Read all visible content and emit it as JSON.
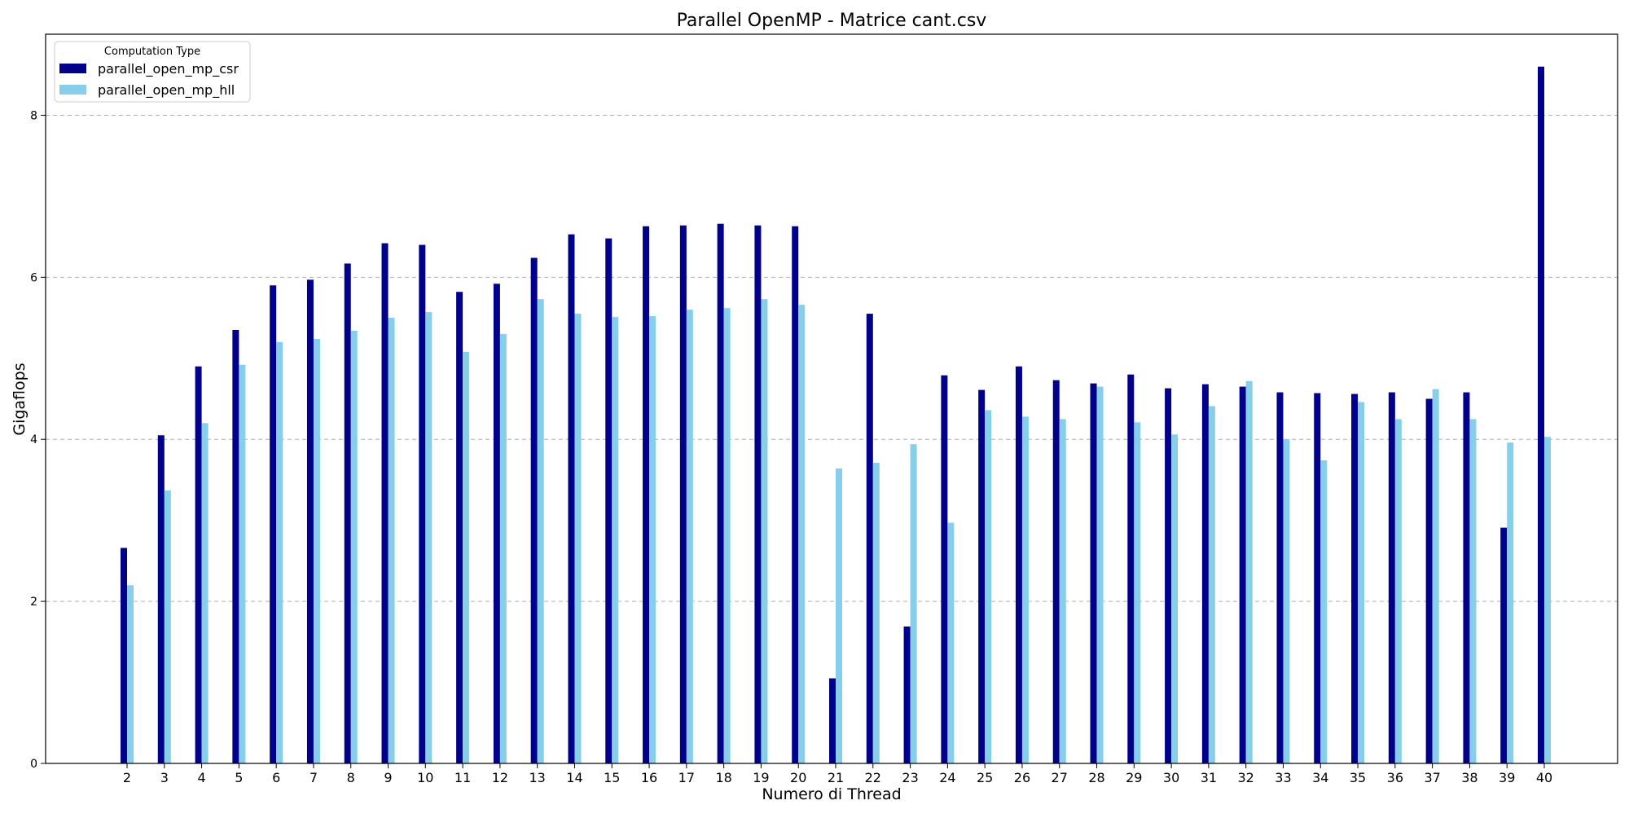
{
  "chart_data": {
    "type": "bar",
    "title": "Parallel OpenMP - Matrice cant.csv",
    "xlabel": "Numero di Thread",
    "ylabel": "Gigaflops",
    "ylim": [
      0,
      9
    ],
    "yticks": [
      0,
      2,
      4,
      6,
      8
    ],
    "grid": "horizontal dashed",
    "legend": {
      "title": "Computation Type",
      "position": "top-left"
    },
    "categories": [
      "2",
      "3",
      "4",
      "5",
      "6",
      "7",
      "8",
      "9",
      "10",
      "11",
      "12",
      "13",
      "14",
      "15",
      "16",
      "17",
      "18",
      "19",
      "20",
      "21",
      "22",
      "23",
      "24",
      "25",
      "26",
      "27",
      "28",
      "29",
      "30",
      "31",
      "32",
      "33",
      "34",
      "35",
      "36",
      "37",
      "38",
      "39",
      "40"
    ],
    "series": [
      {
        "name": "parallel_open_mp_csr",
        "color": "#00008b",
        "values": [
          2.66,
          4.05,
          4.9,
          5.35,
          5.9,
          5.97,
          6.17,
          6.42,
          6.4,
          5.82,
          5.92,
          6.24,
          6.53,
          6.48,
          6.63,
          6.64,
          6.66,
          6.64,
          6.63,
          1.05,
          5.55,
          1.69,
          4.79,
          4.61,
          4.9,
          4.73,
          4.69,
          4.8,
          4.63,
          4.68,
          4.65,
          4.58,
          4.57,
          4.56,
          4.58,
          4.5,
          4.58,
          2.91,
          8.6
        ]
      },
      {
        "name": "parallel_open_mp_hll",
        "color": "#87ceeb",
        "values": [
          2.2,
          3.37,
          4.2,
          4.92,
          5.2,
          5.24,
          5.34,
          5.5,
          5.57,
          5.08,
          5.3,
          5.73,
          5.55,
          5.51,
          5.52,
          5.6,
          5.62,
          5.73,
          5.66,
          3.64,
          3.71,
          3.94,
          2.97,
          4.36,
          4.28,
          4.25,
          4.65,
          4.21,
          4.06,
          4.41,
          4.72,
          4.0,
          3.74,
          4.46,
          4.25,
          4.62,
          4.25,
          3.96,
          4.03
        ]
      }
    ]
  }
}
